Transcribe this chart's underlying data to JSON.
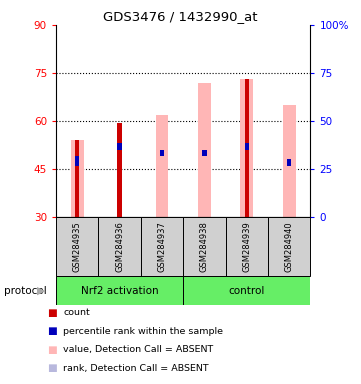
{
  "title": "GDS3476 / 1432990_at",
  "samples": [
    "GSM284935",
    "GSM284936",
    "GSM284937",
    "GSM284938",
    "GSM284939",
    "GSM284940"
  ],
  "ylim_left": [
    30,
    90
  ],
  "ylim_right": [
    0,
    100
  ],
  "yticks_left": [
    30,
    45,
    60,
    75,
    90
  ],
  "yticks_right": [
    0,
    25,
    50,
    75,
    100
  ],
  "yticklabels_right": [
    "0",
    "25",
    "50",
    "75",
    "100%"
  ],
  "bar_bottom": 30,
  "red_bar_tops": [
    54,
    59.5,
    30,
    30,
    73,
    30
  ],
  "blue_bar_bottoms": [
    46,
    51,
    49,
    49,
    51,
    46
  ],
  "blue_bar_tops": [
    49,
    53,
    51,
    51,
    53,
    48
  ],
  "pink_bar_tops": [
    54,
    30,
    62,
    72,
    73,
    65
  ],
  "lightblue_bottoms": [
    30,
    30,
    49,
    49,
    51,
    46
  ],
  "lightblue_tops": [
    30,
    30,
    51,
    51,
    53,
    48
  ],
  "red_color": "#cc0000",
  "blue_color": "#0000bb",
  "pink_color": "#ffb6b6",
  "lightblue_color": "#b8b8dd",
  "gray_bg": "#d0d0d0",
  "green_bg": "#66ee66",
  "plot_bg": "#ffffff",
  "grid_lines": [
    45,
    60,
    75
  ],
  "nrf2_label": "Nrf2 activation",
  "control_label": "control",
  "protocol_label": "protocol",
  "legend_items": [
    "count",
    "percentile rank within the sample",
    "value, Detection Call = ABSENT",
    "rank, Detection Call = ABSENT"
  ],
  "legend_colors": [
    "#cc0000",
    "#0000bb",
    "#ffb6b6",
    "#b8b8dd"
  ]
}
